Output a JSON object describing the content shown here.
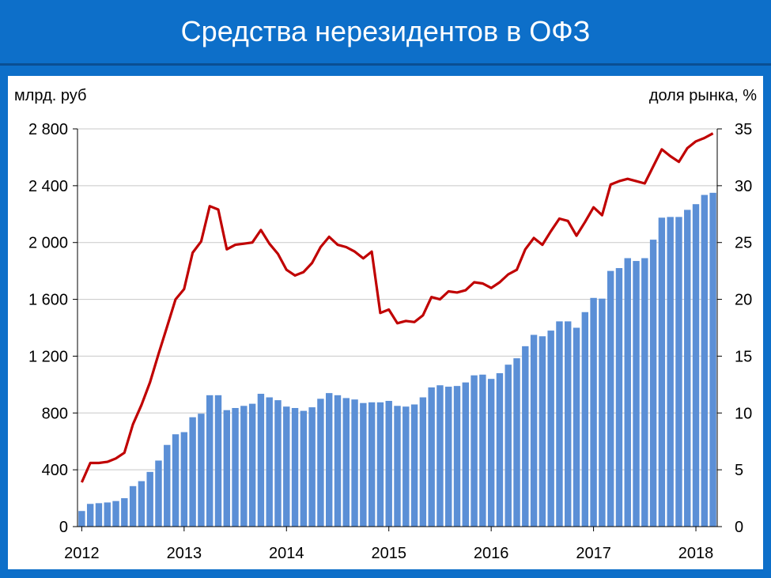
{
  "title": "Средства нерезидентов в ОФЗ",
  "colors": {
    "background": "#0d6fc9",
    "bars": "#5b8fd6",
    "line": "#c00000",
    "grid": "#c8c8c8"
  },
  "chart_data": {
    "type": "bar+line",
    "title": "Средства нерезидентов в ОФЗ",
    "left_axis_label": "млрд. руб",
    "right_axis_label": "доля рынка, %",
    "left_ticks": [
      "0",
      "400",
      "800",
      "1 200",
      "1 600",
      "2 000",
      "2 400",
      "2 800"
    ],
    "right_ticks": [
      "0",
      "5",
      "10",
      "15",
      "20",
      "25",
      "30",
      "35"
    ],
    "x_ticks": [
      "2012",
      "2013",
      "2014",
      "2015",
      "2016",
      "2017",
      "2018"
    ],
    "ylim_left": [
      0,
      2800
    ],
    "ylim_right": [
      0,
      35
    ],
    "grid": true,
    "series": [
      {
        "type": "bar",
        "axis": "left",
        "values": [
          110,
          160,
          165,
          170,
          180,
          200,
          285,
          320,
          385,
          465,
          575,
          650,
          665,
          770,
          795,
          925,
          925,
          820,
          835,
          850,
          865,
          935,
          910,
          890,
          845,
          835,
          815,
          840,
          900,
          940,
          925,
          905,
          895,
          870,
          875,
          875,
          885,
          850,
          845,
          860,
          910,
          980,
          995,
          985,
          990,
          1015,
          1065,
          1070,
          1040,
          1080,
          1140,
          1185,
          1270,
          1350,
          1340,
          1380,
          1445,
          1445,
          1400,
          1510,
          1610,
          1605,
          1800,
          1820,
          1890,
          1870,
          1890,
          2020,
          2175,
          2180,
          2180,
          2230,
          2270,
          2335,
          2350
        ]
      },
      {
        "type": "line",
        "axis": "right",
        "values": [
          3.9,
          5.6,
          5.6,
          5.7,
          6.0,
          6.5,
          9.0,
          10.7,
          12.7,
          15.2,
          17.6,
          20.0,
          20.9,
          24.1,
          25.1,
          28.2,
          27.9,
          24.4,
          24.8,
          24.9,
          25.0,
          26.1,
          24.9,
          24.0,
          22.6,
          22.1,
          22.4,
          23.2,
          24.6,
          25.5,
          24.8,
          24.6,
          24.2,
          23.6,
          24.2,
          18.8,
          19.1,
          17.9,
          18.1,
          18.0,
          18.6,
          20.2,
          20.0,
          20.7,
          20.6,
          20.8,
          21.5,
          21.4,
          21.0,
          21.5,
          22.2,
          22.6,
          24.4,
          25.4,
          24.8,
          26.0,
          27.1,
          26.9,
          25.6,
          26.8,
          28.1,
          27.4,
          30.1,
          30.4,
          30.6,
          30.4,
          30.2,
          31.7,
          33.2,
          32.6,
          32.1,
          33.3,
          33.9,
          34.2,
          34.6
        ]
      }
    ]
  }
}
